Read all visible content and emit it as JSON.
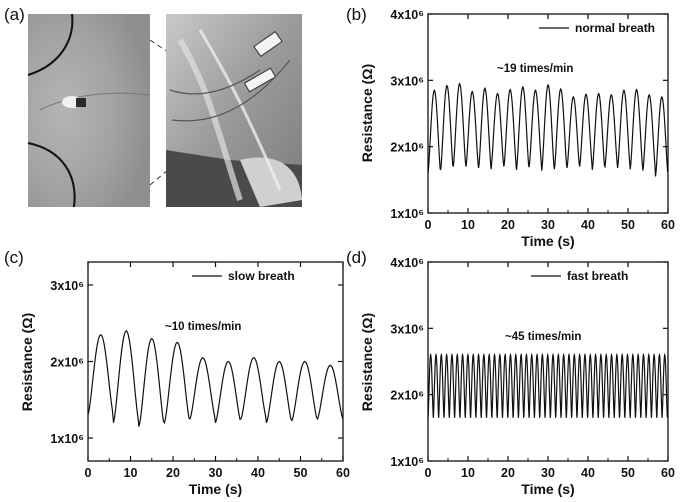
{
  "panels": [
    {
      "id": "a",
      "label": "(a)"
    },
    {
      "id": "b",
      "label": "(b)"
    },
    {
      "id": "c",
      "label": "(c)"
    },
    {
      "id": "d",
      "label": "(d)"
    }
  ],
  "photo_a": {
    "description_name": "breath-sensor-photos"
  },
  "chart_data": [
    {
      "panel": "(b)",
      "type": "line",
      "xlabel": "Time (s)",
      "ylabel": "Resistance (Ω)",
      "xlim": [
        0,
        60
      ],
      "ylim": [
        1000000,
        4000000
      ],
      "xticks": [
        "0",
        "10",
        "20",
        "30",
        "40",
        "50",
        "60"
      ],
      "yticks": [
        "1x10⁶",
        "2x10⁶",
        "3x10⁶",
        "4x10⁶"
      ],
      "legend": "normal breath",
      "legend_position": "top-right",
      "annotation": "~19 times/min",
      "series": [
        {
          "name": "normal breath",
          "period_s": 3.16,
          "peaks": [
            2850000,
            2920000,
            2950000,
            2830000,
            2880000,
            2800000,
            2860000,
            2900000,
            2850000,
            2930000,
            2870000,
            2750000,
            2790000,
            2800000,
            2780000,
            2850000,
            2860000,
            2780000,
            2750000
          ],
          "troughs": [
            1600000,
            1650000,
            1700000,
            1680000,
            1660000,
            1700000,
            1680000,
            1650000,
            1690000,
            1640000,
            1660000,
            1680000,
            1700000,
            1650000,
            1700000,
            1680000,
            1660000,
            1640000,
            1550000
          ]
        }
      ]
    },
    {
      "panel": "(c)",
      "type": "line",
      "xlabel": "Time (s)",
      "ylabel": "Resistance (Ω)",
      "xlim": [
        0,
        60
      ],
      "ylim": [
        700000,
        3300000
      ],
      "xticks": [
        "0",
        "10",
        "20",
        "30",
        "40",
        "50",
        "60"
      ],
      "yticks": [
        "1x10⁶",
        "2x10⁶",
        "3x10⁶"
      ],
      "legend": "slow breath",
      "legend_position": "top-right",
      "annotation": "~10 times/min",
      "series": [
        {
          "name": "slow breath",
          "period_s": 6.0,
          "peaks": [
            2350000,
            2400000,
            2300000,
            2250000,
            2050000,
            2000000,
            2050000,
            2000000,
            2000000,
            1950000
          ],
          "troughs": [
            1300000,
            1200000,
            1150000,
            1200000,
            1250000,
            1200000,
            1250000,
            1200000,
            1230000,
            1250000
          ]
        }
      ]
    },
    {
      "panel": "(d)",
      "type": "line",
      "xlabel": "Time (s)",
      "ylabel": "Resistance (Ω)",
      "xlim": [
        0,
        60
      ],
      "ylim": [
        1000000,
        4000000
      ],
      "xticks": [
        "0",
        "10",
        "20",
        "30",
        "40",
        "50",
        "60"
      ],
      "yticks": [
        "1x10⁶",
        "2x10⁶",
        "3x10⁶",
        "4x10⁶"
      ],
      "legend": "fast breath",
      "legend_position": "top-right",
      "annotation": "~45 times/min",
      "series": [
        {
          "name": "fast breath",
          "period_s": 1.33,
          "peak": 2600000,
          "trough": 1650000
        }
      ]
    }
  ]
}
